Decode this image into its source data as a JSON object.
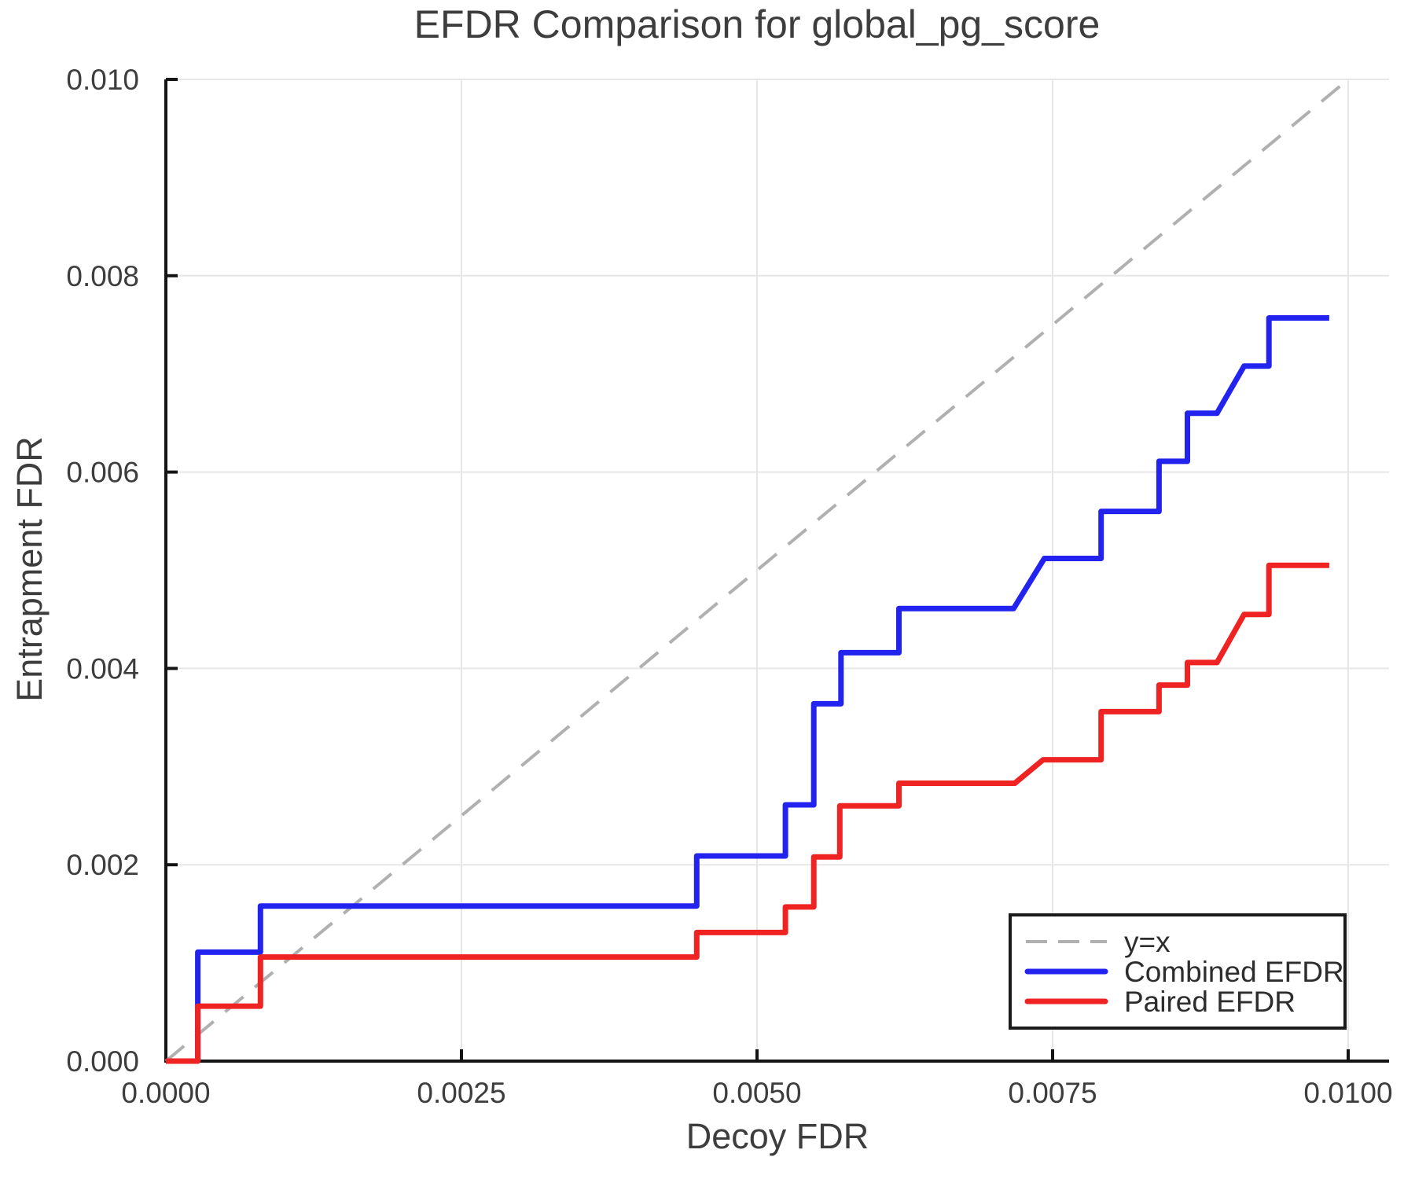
{
  "title": "EFDR Comparison for global_pg_score",
  "colors": {
    "combined": "#2323f0",
    "paired": "#f02323",
    "identity": "#b0b0b0",
    "grid": "#e7e7e7",
    "spine": "#141414",
    "text": "#3d3d3d",
    "legend_text": "#2d2d2d",
    "background": "#ffffff"
  },
  "chart_data": {
    "type": "line",
    "title": "EFDR Comparison for global_pg_score",
    "xlabel": "Decoy FDR",
    "ylabel": "Entrapment FDR",
    "xlim": [
      0.0,
      0.01
    ],
    "ylim": [
      0.0,
      0.01
    ],
    "grid": true,
    "x_ticks": {
      "values": [
        0.0,
        0.0025,
        0.005,
        0.0075,
        0.01
      ],
      "labels": [
        "0.0000",
        "0.0025",
        "0.0050",
        "0.0075",
        "0.0100"
      ]
    },
    "y_ticks": {
      "values": [
        0.0,
        0.002,
        0.004,
        0.006,
        0.008,
        0.01
      ],
      "labels": [
        "0.000",
        "0.002",
        "0.004",
        "0.006",
        "0.008",
        "0.010"
      ]
    },
    "legend": {
      "position": "lower right",
      "entries": [
        "y=x",
        "Combined EFDR",
        "Paired EFDR"
      ]
    },
    "series": [
      {
        "key": "identity",
        "name": "y=x",
        "color": "#b0b0b0",
        "width": 4,
        "dash": "30 19",
        "points": [
          [
            0.0,
            0.0
          ],
          [
            0.01,
            0.01
          ]
        ]
      },
      {
        "key": "combined",
        "name": "Combined EFDR",
        "color": "#2323f0",
        "width": 7,
        "dash": null,
        "points": [
          [
            0.0,
            0.0
          ],
          [
            0.00027,
            0.0
          ],
          [
            0.00027,
            0.00111
          ],
          [
            0.0008,
            0.00111
          ],
          [
            0.0008,
            0.00158
          ],
          [
            0.00449,
            0.00158
          ],
          [
            0.00449,
            0.00209
          ],
          [
            0.00524,
            0.00209
          ],
          [
            0.00524,
            0.00261
          ],
          [
            0.00548,
            0.00261
          ],
          [
            0.00548,
            0.00364
          ],
          [
            0.00571,
            0.00364
          ],
          [
            0.00571,
            0.00416
          ],
          [
            0.0062,
            0.00416
          ],
          [
            0.0062,
            0.00461
          ],
          [
            0.00717,
            0.00461
          ],
          [
            0.00743,
            0.00512
          ],
          [
            0.00791,
            0.00512
          ],
          [
            0.00791,
            0.0056
          ],
          [
            0.0084,
            0.0056
          ],
          [
            0.0084,
            0.00611
          ],
          [
            0.00864,
            0.00611
          ],
          [
            0.00864,
            0.0066
          ],
          [
            0.00889,
            0.0066
          ],
          [
            0.00912,
            0.00708
          ],
          [
            0.00933,
            0.00708
          ],
          [
            0.00933,
            0.00757
          ],
          [
            0.00984,
            0.00757
          ]
        ]
      },
      {
        "key": "paired",
        "name": "Paired EFDR",
        "color": "#f02323",
        "width": 7,
        "dash": null,
        "points": [
          [
            0.0,
            0.0
          ],
          [
            0.00027,
            0.0
          ],
          [
            0.00027,
            0.00056
          ],
          [
            0.0008,
            0.00056
          ],
          [
            0.0008,
            0.00106
          ],
          [
            0.00449,
            0.00106
          ],
          [
            0.00449,
            0.00131
          ],
          [
            0.00524,
            0.00131
          ],
          [
            0.00524,
            0.00157
          ],
          [
            0.00548,
            0.00157
          ],
          [
            0.00548,
            0.00208
          ],
          [
            0.0057,
            0.00208
          ],
          [
            0.0057,
            0.0026
          ],
          [
            0.0062,
            0.0026
          ],
          [
            0.0062,
            0.00283
          ],
          [
            0.00718,
            0.00283
          ],
          [
            0.00742,
            0.00307
          ],
          [
            0.00791,
            0.00307
          ],
          [
            0.00791,
            0.00356
          ],
          [
            0.0084,
            0.00356
          ],
          [
            0.0084,
            0.00383
          ],
          [
            0.00864,
            0.00383
          ],
          [
            0.00864,
            0.00406
          ],
          [
            0.00889,
            0.00406
          ],
          [
            0.00912,
            0.00455
          ],
          [
            0.00933,
            0.00455
          ],
          [
            0.00933,
            0.00505
          ],
          [
            0.00984,
            0.00505
          ]
        ]
      }
    ]
  }
}
